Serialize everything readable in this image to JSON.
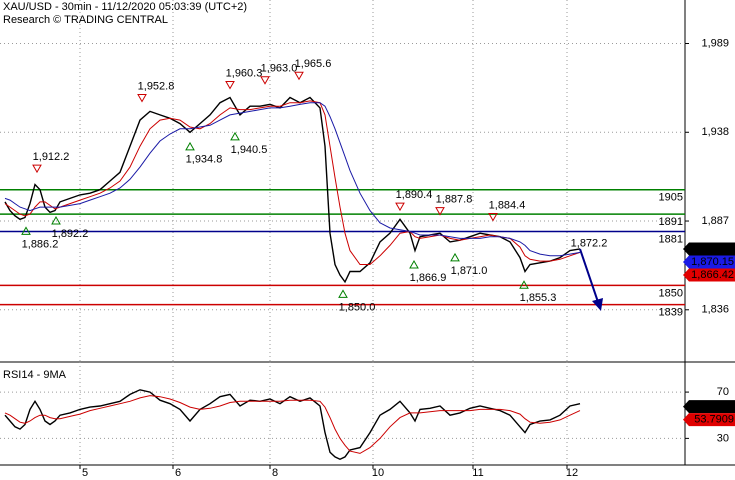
{
  "chart_data": [
    {
      "type": "line",
      "title": "XAU/USD - 30min - 11/12/2020 05:03:39 (UTC+2)",
      "subtitle": "Research © TRADING CENTRAL",
      "x": [
        5,
        10,
        15,
        20,
        25,
        30,
        35,
        40,
        45,
        50,
        55,
        60,
        70,
        80,
        90,
        100,
        110,
        120,
        130,
        140,
        150,
        160,
        170,
        180,
        190,
        200,
        210,
        220,
        230,
        240,
        250,
        260,
        270,
        280,
        290,
        300,
        310,
        320,
        325,
        330,
        335,
        340,
        345,
        350,
        360,
        370,
        380,
        390,
        400,
        410,
        415,
        420,
        430,
        440,
        450,
        460,
        470,
        480,
        490,
        500,
        510,
        520,
        525,
        530,
        540,
        550,
        560,
        570,
        580
      ],
      "series": [
        {
          "color": "#000000",
          "values": [
            1898,
            1893,
            1890,
            1888,
            1889,
            1897,
            1908,
            1905,
            1895,
            1892,
            1893,
            1898,
            1900,
            1902,
            1903,
            1905,
            1910,
            1915,
            1930,
            1945,
            1950,
            1948,
            1946,
            1943,
            1938,
            1943,
            1948,
            1955,
            1958,
            1948,
            1953,
            1953,
            1954,
            1952,
            1958,
            1955,
            1958,
            1952,
            1930,
            1880,
            1862,
            1856,
            1852,
            1858,
            1858,
            1863,
            1875,
            1880,
            1888,
            1880,
            1870,
            1878,
            1879,
            1880,
            1875,
            1876,
            1878,
            1880,
            1879,
            1878,
            1875,
            1866,
            1858,
            1862,
            1863,
            1864,
            1866,
            1870,
            1871
          ]
        },
        {
          "color": "#cc0000",
          "values": [
            1897,
            1895,
            1893,
            1891,
            1890,
            1891,
            1895,
            1898,
            1898,
            1896,
            1894,
            1895,
            1897,
            1899,
            1901,
            1903,
            1906,
            1910,
            1918,
            1930,
            1940,
            1945,
            1946,
            1945,
            1941,
            1940,
            1943,
            1948,
            1952,
            1951,
            1951,
            1952,
            1953,
            1953,
            1955,
            1955,
            1956,
            1955,
            1948,
            1930,
            1912,
            1895,
            1880,
            1870,
            1862,
            1862,
            1867,
            1873,
            1880,
            1881,
            1878,
            1877,
            1878,
            1879,
            1877,
            1876,
            1877,
            1878,
            1879,
            1878,
            1877,
            1872,
            1867,
            1865,
            1864,
            1864,
            1865,
            1867,
            1869
          ]
        },
        {
          "color": "#1a1aa6",
          "values": [
            1900,
            1899,
            1897,
            1895,
            1894,
            1893,
            1894,
            1895,
            1895,
            1895,
            1895,
            1895,
            1896,
            1897,
            1899,
            1901,
            1903,
            1906,
            1911,
            1918,
            1926,
            1933,
            1937,
            1940,
            1940,
            1941,
            1942,
            1945,
            1948,
            1949,
            1950,
            1951,
            1952,
            1952,
            1953,
            1954,
            1955,
            1955,
            1953,
            1947,
            1940,
            1932,
            1924,
            1916,
            1903,
            1893,
            1886,
            1883,
            1882,
            1881,
            1880,
            1879,
            1879,
            1879,
            1878,
            1877,
            1877,
            1877,
            1878,
            1878,
            1877,
            1875,
            1873,
            1870,
            1868,
            1867,
            1867,
            1868,
            1869
          ]
        }
      ],
      "xlim": [
        0,
        685
      ],
      "ylim": [
        1806,
        2014
      ],
      "yticks": [
        {
          "value": 1989,
          "label": "1,989"
        },
        {
          "value": 1938,
          "label": "1,938"
        },
        {
          "value": 1887,
          "label": "1,887"
        },
        {
          "value": 1836,
          "label": "1,836"
        }
      ],
      "grid": true,
      "levels": [
        {
          "value": 1905,
          "color": "#008000"
        },
        {
          "value": 1891,
          "color": "#008000"
        },
        {
          "value": 1881,
          "color": "#00008b"
        },
        {
          "value": 1850,
          "color": "#cc0000"
        },
        {
          "value": 1839,
          "color": "#cc0000"
        }
      ],
      "price_tags": [
        {
          "value": 1870.91,
          "label": "1,870.91",
          "color": "#000000"
        },
        {
          "value": 1870.15,
          "label": "1,870.15",
          "color": "#1a1ae6"
        },
        {
          "value": 1866.42,
          "label": "1,866.42",
          "color": "#e00000"
        }
      ],
      "annotations": [
        {
          "x": 37,
          "value": 1912.2,
          "label": "1,912.2",
          "marker": "down"
        },
        {
          "x": 26,
          "value": 1886.2,
          "label": "1,886.2",
          "marker": "up"
        },
        {
          "x": 56,
          "value": 1892.2,
          "label": "1,892.2",
          "marker": "up"
        },
        {
          "x": 142,
          "value": 1952.8,
          "label": "1,952.8",
          "marker": "down"
        },
        {
          "x": 190,
          "value": 1934.8,
          "label": "1,934.8",
          "marker": "up"
        },
        {
          "x": 230,
          "value": 1960.3,
          "label": "1,960.3",
          "marker": "down"
        },
        {
          "x": 265,
          "value": 1963.0,
          "label": "1,963.0",
          "marker": "down"
        },
        {
          "x": 299,
          "value": 1965.6,
          "label": "1,965.6",
          "marker": "down"
        },
        {
          "x": 235,
          "value": 1940.5,
          "label": "1,940.5",
          "marker": "up"
        },
        {
          "x": 400,
          "value": 1890.4,
          "label": "1,890.4",
          "marker": "down"
        },
        {
          "x": 440,
          "value": 1887.8,
          "label": "1,887.8",
          "marker": "down"
        },
        {
          "x": 493,
          "value": 1884.4,
          "label": "1,884.4",
          "marker": "down"
        },
        {
          "x": 577,
          "value": 1872.2,
          "label": "1,872.2"
        },
        {
          "x": 414,
          "value": 1866.9,
          "label": "1,866.9",
          "marker": "up"
        },
        {
          "x": 455,
          "value": 1871.0,
          "label": "1,871.0",
          "marker": "up"
        },
        {
          "x": 343,
          "value": 1850.0,
          "label": "1,850.0",
          "marker": "up"
        },
        {
          "x": 524,
          "value": 1855.3,
          "label": "1,855.3",
          "marker": "up"
        }
      ]
    },
    {
      "type": "line",
      "title": "RSI14 - 9MA",
      "x": [
        5,
        10,
        15,
        20,
        25,
        30,
        35,
        40,
        45,
        50,
        55,
        60,
        70,
        80,
        90,
        100,
        110,
        120,
        130,
        140,
        150,
        160,
        170,
        180,
        190,
        200,
        210,
        220,
        230,
        240,
        250,
        260,
        270,
        280,
        290,
        300,
        310,
        320,
        325,
        330,
        335,
        340,
        345,
        350,
        360,
        370,
        380,
        390,
        400,
        410,
        415,
        420,
        430,
        440,
        450,
        460,
        470,
        480,
        490,
        500,
        510,
        520,
        525,
        530,
        540,
        550,
        560,
        570,
        580
      ],
      "series": [
        {
          "color": "#000000",
          "values": [
            50,
            45,
            40,
            38,
            42,
            55,
            62,
            55,
            45,
            42,
            45,
            50,
            52,
            55,
            57,
            58,
            60,
            62,
            68,
            72,
            70,
            63,
            60,
            55,
            45,
            55,
            60,
            66,
            68,
            58,
            63,
            62,
            64,
            60,
            66,
            62,
            65,
            58,
            35,
            18,
            14,
            12,
            14,
            20,
            22,
            35,
            50,
            55,
            62,
            52,
            45,
            55,
            56,
            58,
            50,
            52,
            56,
            58,
            56,
            54,
            50,
            40,
            35,
            42,
            45,
            46,
            50,
            58,
            60
          ]
        },
        {
          "color": "#cc0000",
          "values": [
            52,
            50,
            47,
            44,
            43,
            45,
            48,
            50,
            50,
            48,
            47,
            47,
            49,
            51,
            54,
            56,
            58,
            60,
            62,
            65,
            67,
            66,
            64,
            61,
            57,
            55,
            56,
            58,
            61,
            62,
            62,
            62,
            62,
            62,
            63,
            63,
            63,
            62,
            57,
            48,
            38,
            30,
            24,
            19,
            17,
            22,
            30,
            40,
            48,
            52,
            52,
            52,
            53,
            54,
            54,
            54,
            54,
            55,
            55,
            55,
            54,
            51,
            47,
            44,
            43,
            44,
            46,
            50,
            54
          ]
        }
      ],
      "xlim": [
        0,
        685
      ],
      "xticks": [
        {
          "value": 80,
          "label": "5"
        },
        {
          "value": 173,
          "label": "6"
        },
        {
          "value": 270,
          "label": "8"
        },
        {
          "value": 373,
          "label": "10"
        },
        {
          "value": 473,
          "label": "11"
        },
        {
          "value": 567,
          "label": "12"
        }
      ],
      "ylim": [
        7,
        96
      ],
      "yticks": [
        70,
        30
      ],
      "grid": true,
      "price_tags": [
        {
          "value": 57.4442,
          "label": "57.4442",
          "color": "#000000"
        },
        {
          "value": 53.7909,
          "label": "53.7909",
          "color": "#e00000"
        }
      ]
    }
  ]
}
